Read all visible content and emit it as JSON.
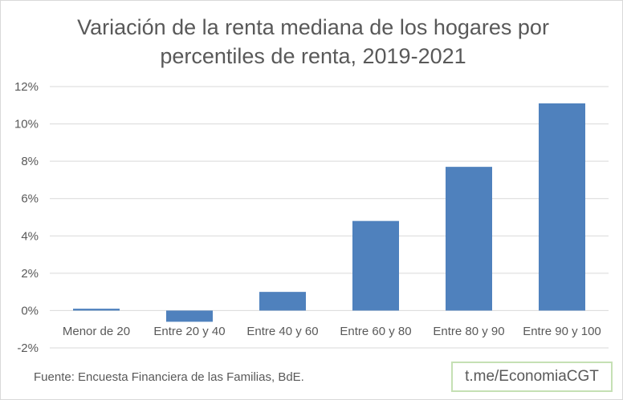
{
  "chart_data": {
    "type": "bar",
    "title": "Variación de la renta mediana de los hogares por percentiles de renta, 2019-2021",
    "title_lines": [
      "Variación de la renta mediana de los hogares por",
      "percentiles de renta, 2019-2021"
    ],
    "categories": [
      "Menor de 20",
      "Entre 20 y 40",
      "Entre 40 y 60",
      "Entre 60 y 80",
      "Entre 80 y 90",
      "Entre 90 y 100"
    ],
    "values": [
      0.1,
      -0.6,
      1.0,
      4.8,
      7.7,
      11.1
    ],
    "unit": "%",
    "ylim": [
      -2,
      12
    ],
    "yticks": [
      -2,
      0,
      2,
      4,
      6,
      8,
      10,
      12
    ],
    "ytick_labels": [
      "-2%",
      "0%",
      "2%",
      "4%",
      "6%",
      "8%",
      "10%",
      "12%"
    ],
    "xlabel": "",
    "ylabel": "",
    "grid": true,
    "legend": "none",
    "bar_color": "#4f81bd",
    "grid_color": "#d9d9d9",
    "text_color": "#595959"
  },
  "footer": {
    "source": "Fuente: Encuesta Financiera de las Familias, BdE.",
    "badge": "t.me/EconomiaCGT"
  }
}
